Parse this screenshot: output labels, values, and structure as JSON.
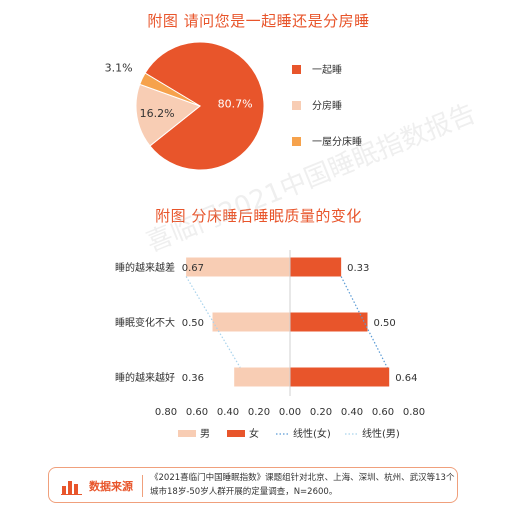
{
  "chart_data": [
    {
      "type": "pie",
      "title": "附图 请问您是一起睡还是分房睡",
      "slices": [
        {
          "name": "一起睡",
          "value": 80.7,
          "label": "80.7%",
          "color": "#e8552b"
        },
        {
          "name": "分房睡",
          "value": 16.2,
          "label": "16.2%",
          "color": "#f8cdb4"
        },
        {
          "name": "一屋分床睡",
          "value": 3.1,
          "label": "3.1%",
          "color": "#f6a24c"
        }
      ],
      "legend_position": "right"
    },
    {
      "type": "bar",
      "orientation": "horizontal",
      "title": "附图 分床睡后睡眠质量的变化",
      "categories": [
        "睡的越来越差",
        "睡眠变化不大",
        "睡的越来越好"
      ],
      "series": [
        {
          "name": "男",
          "values": [
            0.67,
            0.5,
            0.36
          ],
          "labels": [
            "0.67",
            "0.50",
            "0.36"
          ],
          "color": "#f8cdb4"
        },
        {
          "name": "女",
          "values": [
            0.33,
            0.5,
            0.64
          ],
          "labels": [
            "0.33",
            "0.50",
            "0.64"
          ],
          "color": "#e8552b"
        }
      ],
      "trendlines": [
        {
          "name": "线性(女)",
          "style": "dotted",
          "color": "#5b9bd5"
        },
        {
          "name": "线性(男)",
          "style": "dotted",
          "color": "#a9d3ec"
        }
      ],
      "x_ticks": [
        "0.80",
        "0.60",
        "0.40",
        "0.20",
        "0.00",
        "0.20",
        "0.40",
        "0.60",
        "0.80"
      ],
      "xlim": [
        -0.8,
        0.8
      ],
      "legend_position": "bottom",
      "grid": false
    }
  ],
  "watermark": "喜临门2021中国睡眠指数报告",
  "source": {
    "label": "数据来源",
    "text": "《2021喜临门中国睡眠指数》课题组针对北京、上海、深圳、杭州、武汉等13个城市18岁-50岁人群开展的定量调查，N=2600。"
  },
  "colors": {
    "accent": "#e8552b",
    "light": "#f8cdb4",
    "orange": "#f6a24c"
  }
}
